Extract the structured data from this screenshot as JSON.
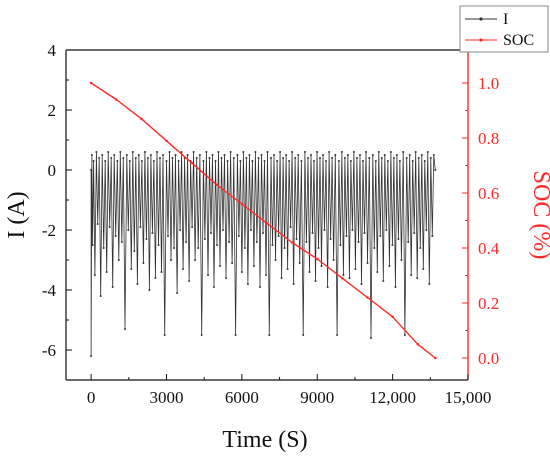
{
  "chart_data": {
    "type": "line",
    "title": "",
    "xlabel": "Time (S)",
    "ylabel": "I (A)",
    "y2label": "SOC (%)",
    "xlim": [
      -1000,
      15000
    ],
    "ylim": [
      -7,
      4
    ],
    "y2lim": [
      -0.08,
      1.12
    ],
    "x_ticks": [
      0,
      3000,
      6000,
      9000,
      12000,
      15000
    ],
    "x_tick_labels": [
      "0",
      "3000",
      "6000",
      "9000",
      "12,000",
      "15,000"
    ],
    "y_ticks": [
      -6,
      -4,
      -2,
      0,
      2,
      4
    ],
    "y_tick_labels": [
      "-6",
      "-4",
      "-2",
      "0",
      "2",
      "4"
    ],
    "y2_ticks": [
      0.0,
      0.2,
      0.4,
      0.6,
      0.8,
      1.0
    ],
    "y2_tick_labels": [
      "0.0",
      "0.2",
      "0.4",
      "0.6",
      "0.8",
      "1.0"
    ],
    "grid": false,
    "legend_position": "top-right",
    "colors": {
      "current": "#333333",
      "soc": "#ff2a2a",
      "right_axis": "#ff2a2a",
      "axis": "#111111"
    },
    "series": [
      {
        "name": "I",
        "axis": "left",
        "style": "line-with-small-markers",
        "points": [
          [
            0,
            0
          ],
          [
            0,
            -6.2
          ],
          [
            30,
            0.5
          ],
          [
            60,
            -2.5
          ],
          [
            100,
            0.3
          ],
          [
            150,
            -3.5
          ],
          [
            210,
            0.6
          ],
          [
            260,
            -1.8
          ],
          [
            320,
            0.4
          ],
          [
            380,
            -4.2
          ],
          [
            440,
            0.5
          ],
          [
            500,
            -2.6
          ],
          [
            560,
            0.3
          ],
          [
            620,
            -3.4
          ],
          [
            680,
            0.6
          ],
          [
            740,
            -1.9
          ],
          [
            800,
            0.4
          ],
          [
            860,
            -3.9
          ],
          [
            920,
            0.5
          ],
          [
            980,
            -2.2
          ],
          [
            1040,
            0.3
          ],
          [
            1100,
            -3.0
          ],
          [
            1160,
            0.6
          ],
          [
            1220,
            -2.4
          ],
          [
            1280,
            0.4
          ],
          [
            1350,
            -5.3
          ],
          [
            1420,
            0.5
          ],
          [
            1480,
            -2.0
          ],
          [
            1540,
            0.3
          ],
          [
            1600,
            -3.3
          ],
          [
            1660,
            0.6
          ],
          [
            1720,
            -2.7
          ],
          [
            1780,
            0.4
          ],
          [
            1840,
            -3.8
          ],
          [
            1900,
            0.5
          ],
          [
            1960,
            -1.9
          ],
          [
            2020,
            0.3
          ],
          [
            2080,
            -3.1
          ],
          [
            2140,
            0.6
          ],
          [
            2200,
            -2.3
          ],
          [
            2260,
            0.4
          ],
          [
            2320,
            -4.0
          ],
          [
            2380,
            0.5
          ],
          [
            2440,
            -2.1
          ],
          [
            2500,
            0.3
          ],
          [
            2560,
            -3.6
          ],
          [
            2620,
            0.6
          ],
          [
            2680,
            -2.5
          ],
          [
            2740,
            0.4
          ],
          [
            2800,
            -3.4
          ],
          [
            2860,
            0.5
          ],
          [
            2930,
            -5.5
          ],
          [
            3000,
            0.3
          ],
          [
            3060,
            -2.2
          ],
          [
            3120,
            0.6
          ],
          [
            3180,
            -3.0
          ],
          [
            3240,
            0.4
          ],
          [
            3300,
            -2.6
          ],
          [
            3360,
            0.5
          ],
          [
            3420,
            -4.1
          ],
          [
            3480,
            0.3
          ],
          [
            3540,
            -2.0
          ],
          [
            3600,
            0.6
          ],
          [
            3660,
            -3.3
          ],
          [
            3720,
            0.4
          ],
          [
            3780,
            -2.4
          ],
          [
            3840,
            0.5
          ],
          [
            3900,
            -3.7
          ],
          [
            3960,
            0.3
          ],
          [
            4020,
            -1.9
          ],
          [
            4080,
            0.6
          ],
          [
            4140,
            -3.0
          ],
          [
            4200,
            0.4
          ],
          [
            4260,
            -2.6
          ],
          [
            4330,
            0.5
          ],
          [
            4400,
            -5.5
          ],
          [
            4470,
            0.3
          ],
          [
            4530,
            -2.3
          ],
          [
            4590,
            0.6
          ],
          [
            4650,
            -3.5
          ],
          [
            4710,
            0.4
          ],
          [
            4770,
            -2.1
          ],
          [
            4830,
            0.5
          ],
          [
            4890,
            -3.9
          ],
          [
            4950,
            0.3
          ],
          [
            5010,
            -2.5
          ],
          [
            5070,
            0.6
          ],
          [
            5130,
            -3.2
          ],
          [
            5190,
            0.4
          ],
          [
            5250,
            -2.0
          ],
          [
            5310,
            0.5
          ],
          [
            5370,
            -3.6
          ],
          [
            5430,
            0.3
          ],
          [
            5490,
            -2.4
          ],
          [
            5550,
            0.6
          ],
          [
            5610,
            -3.1
          ],
          [
            5680,
            0.4
          ],
          [
            5750,
            -5.5
          ],
          [
            5820,
            0.5
          ],
          [
            5880,
            -2.2
          ],
          [
            5940,
            0.3
          ],
          [
            6000,
            -3.4
          ],
          [
            6060,
            0.6
          ],
          [
            6120,
            -2.6
          ],
          [
            6180,
            0.4
          ],
          [
            6240,
            -3.8
          ],
          [
            6300,
            0.5
          ],
          [
            6360,
            -2.0
          ],
          [
            6420,
            0.3
          ],
          [
            6480,
            -3.2
          ],
          [
            6540,
            0.6
          ],
          [
            6600,
            -2.4
          ],
          [
            6660,
            0.4
          ],
          [
            6720,
            -3.9
          ],
          [
            6780,
            0.5
          ],
          [
            6840,
            -2.1
          ],
          [
            6900,
            0.3
          ],
          [
            6960,
            -3.5
          ],
          [
            7020,
            0.6
          ],
          [
            7090,
            -5.5
          ],
          [
            7160,
            0.4
          ],
          [
            7220,
            -2.5
          ],
          [
            7280,
            0.5
          ],
          [
            7340,
            -3.0
          ],
          [
            7400,
            0.3
          ],
          [
            7460,
            -2.2
          ],
          [
            7520,
            0.6
          ],
          [
            7580,
            -3.6
          ],
          [
            7640,
            0.4
          ],
          [
            7700,
            -2.6
          ],
          [
            7760,
            0.5
          ],
          [
            7820,
            -3.3
          ],
          [
            7880,
            0.3
          ],
          [
            7940,
            -1.9
          ],
          [
            8000,
            0.6
          ],
          [
            8060,
            -3.8
          ],
          [
            8120,
            0.4
          ],
          [
            8180,
            -2.3
          ],
          [
            8240,
            0.5
          ],
          [
            8300,
            -3.1
          ],
          [
            8370,
            0.3
          ],
          [
            8440,
            -5.5
          ],
          [
            8510,
            0.6
          ],
          [
            8570,
            -2.4
          ],
          [
            8630,
            0.4
          ],
          [
            8690,
            -3.4
          ],
          [
            8750,
            0.5
          ],
          [
            8810,
            -2.1
          ],
          [
            8870,
            0.3
          ],
          [
            8930,
            -3.7
          ],
          [
            8990,
            0.6
          ],
          [
            9050,
            -2.6
          ],
          [
            9110,
            0.4
          ],
          [
            9170,
            -3.2
          ],
          [
            9230,
            0.5
          ],
          [
            9290,
            -2.0
          ],
          [
            9350,
            0.3
          ],
          [
            9410,
            -3.9
          ],
          [
            9470,
            0.6
          ],
          [
            9530,
            -2.3
          ],
          [
            9590,
            0.4
          ],
          [
            9650,
            -3.0
          ],
          [
            9720,
            0.5
          ],
          [
            9790,
            -5.5
          ],
          [
            9860,
            0.3
          ],
          [
            9920,
            -2.5
          ],
          [
            9980,
            0.6
          ],
          [
            10040,
            -3.5
          ],
          [
            10100,
            0.4
          ],
          [
            10160,
            -2.2
          ],
          [
            10220,
            0.5
          ],
          [
            10280,
            -3.6
          ],
          [
            10340,
            0.3
          ],
          [
            10400,
            -2.0
          ],
          [
            10460,
            0.6
          ],
          [
            10520,
            -3.3
          ],
          [
            10580,
            0.4
          ],
          [
            10640,
            -2.4
          ],
          [
            10700,
            0.5
          ],
          [
            10760,
            -3.8
          ],
          [
            10820,
            0.3
          ],
          [
            10880,
            -2.1
          ],
          [
            10940,
            0.6
          ],
          [
            11000,
            -3.1
          ],
          [
            11070,
            0.4
          ],
          [
            11140,
            -5.6
          ],
          [
            11210,
            0.5
          ],
          [
            11270,
            -2.6
          ],
          [
            11330,
            0.3
          ],
          [
            11390,
            -3.4
          ],
          [
            11450,
            0.6
          ],
          [
            11510,
            -2.2
          ],
          [
            11570,
            0.4
          ],
          [
            11630,
            -3.7
          ],
          [
            11690,
            0.5
          ],
          [
            11750,
            -2.0
          ],
          [
            11810,
            0.3
          ],
          [
            11870,
            -3.2
          ],
          [
            11930,
            0.6
          ],
          [
            11990,
            -2.5
          ],
          [
            12050,
            0.4
          ],
          [
            12110,
            -3.9
          ],
          [
            12170,
            0.5
          ],
          [
            12230,
            -2.3
          ],
          [
            12290,
            0.3
          ],
          [
            12350,
            -3.0
          ],
          [
            12420,
            0.6
          ],
          [
            12490,
            -5.5
          ],
          [
            12560,
            0.4
          ],
          [
            12620,
            -2.4
          ],
          [
            12680,
            0.5
          ],
          [
            12740,
            -3.5
          ],
          [
            12800,
            0.3
          ],
          [
            12860,
            -2.1
          ],
          [
            12920,
            0.6
          ],
          [
            12980,
            -3.6
          ],
          [
            13040,
            0.4
          ],
          [
            13100,
            -2.6
          ],
          [
            13160,
            0.5
          ],
          [
            13220,
            -3.3
          ],
          [
            13280,
            0.3
          ],
          [
            13340,
            -2.0
          ],
          [
            13400,
            0.6
          ],
          [
            13460,
            -3.8
          ],
          [
            13520,
            0.4
          ],
          [
            13580,
            -2.2
          ],
          [
            13640,
            0.5
          ],
          [
            13700,
            0.0
          ]
        ]
      },
      {
        "name": "SOC",
        "axis": "right",
        "style": "line-with-small-markers",
        "points": [
          [
            0,
            1.0
          ],
          [
            1000,
            0.94
          ],
          [
            2000,
            0.87
          ],
          [
            3000,
            0.79
          ],
          [
            4000,
            0.71
          ],
          [
            5000,
            0.63
          ],
          [
            6000,
            0.56
          ],
          [
            7000,
            0.49
          ],
          [
            8000,
            0.42
          ],
          [
            9000,
            0.36
          ],
          [
            10000,
            0.29
          ],
          [
            11000,
            0.22
          ],
          [
            12000,
            0.15
          ],
          [
            13000,
            0.05
          ],
          [
            13700,
            0.0
          ]
        ]
      }
    ]
  }
}
